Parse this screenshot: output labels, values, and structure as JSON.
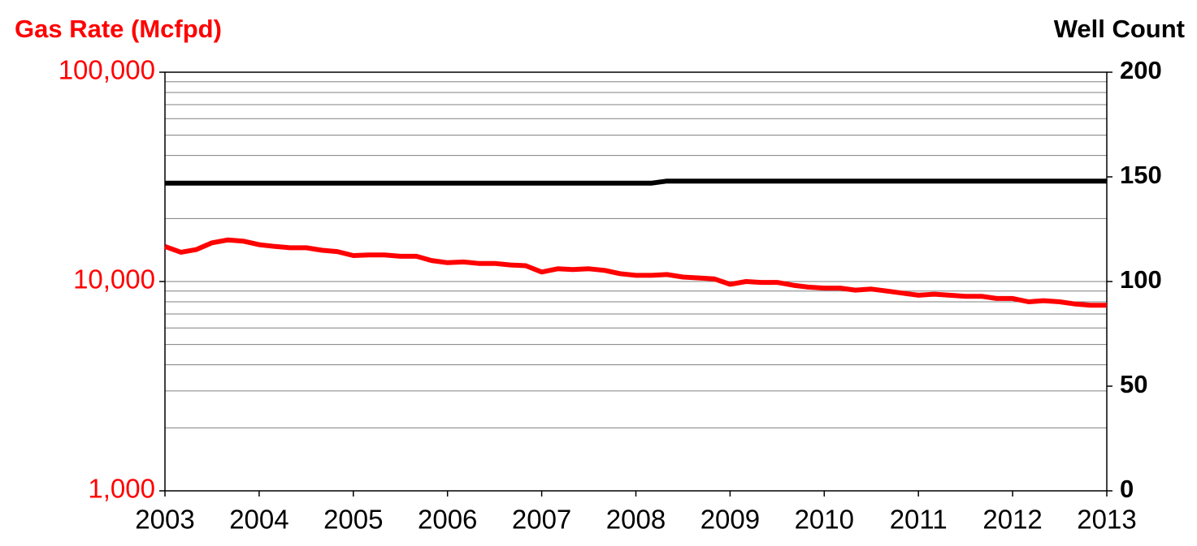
{
  "chart_data": {
    "type": "line",
    "y_title": "Gas Rate (Mcfpd)",
    "y2_title": "Well Count",
    "x": [
      2003.0,
      2003.17,
      2003.33,
      2003.5,
      2003.67,
      2003.83,
      2004.0,
      2004.17,
      2004.33,
      2004.5,
      2004.67,
      2004.83,
      2005.0,
      2005.17,
      2005.33,
      2005.5,
      2005.67,
      2005.83,
      2006.0,
      2006.17,
      2006.33,
      2006.5,
      2006.67,
      2006.83,
      2007.0,
      2007.17,
      2007.33,
      2007.5,
      2007.67,
      2007.83,
      2008.0,
      2008.17,
      2008.33,
      2008.5,
      2008.67,
      2008.83,
      2009.0,
      2009.17,
      2009.33,
      2009.5,
      2009.67,
      2009.83,
      2010.0,
      2010.17,
      2010.33,
      2010.5,
      2010.67,
      2010.83,
      2011.0,
      2011.17,
      2011.33,
      2011.5,
      2011.67,
      2011.83,
      2012.0,
      2012.17,
      2012.33,
      2012.5,
      2012.67,
      2012.83,
      2013.0
    ],
    "series": [
      {
        "name": "Gas Rate",
        "color": "#ff0000",
        "axis": "y",
        "values": [
          14700,
          13800,
          14200,
          15300,
          15800,
          15600,
          15000,
          14700,
          14500,
          14500,
          14100,
          13900,
          13300,
          13400,
          13400,
          13200,
          13200,
          12600,
          12300,
          12400,
          12200,
          12200,
          12000,
          11900,
          11100,
          11500,
          11400,
          11500,
          11300,
          10900,
          10700,
          10700,
          10800,
          10500,
          10400,
          10300,
          9700,
          10000,
          9900,
          9900,
          9600,
          9400,
          9300,
          9300,
          9100,
          9200,
          9000,
          8800,
          8600,
          8700,
          8600,
          8500,
          8500,
          8300,
          8300,
          8000,
          8100,
          8000,
          7800,
          7700,
          7700
        ]
      },
      {
        "name": "Well Count",
        "color": "#000000",
        "axis": "y2",
        "values": [
          147,
          147,
          147,
          147,
          147,
          147,
          147,
          147,
          147,
          147,
          147,
          147,
          147,
          147,
          147,
          147,
          147,
          147,
          147,
          147,
          147,
          147,
          147,
          147,
          147,
          147,
          147,
          147,
          147,
          147,
          147,
          147,
          148,
          148,
          148,
          148,
          148,
          148,
          148,
          148,
          148,
          148,
          148,
          148,
          148,
          148,
          148,
          148,
          148,
          148,
          148,
          148,
          148,
          148,
          148,
          148,
          148,
          148,
          148,
          148,
          148
        ]
      }
    ],
    "xlim": [
      2003,
      2013
    ],
    "xticks": [
      2003,
      2004,
      2005,
      2006,
      2007,
      2008,
      2009,
      2010,
      2011,
      2012,
      2013
    ],
    "ylim": [
      1000,
      100000
    ],
    "y_scale": "log",
    "yticks": [
      {
        "value": 1000,
        "label": "1,000"
      },
      {
        "value": 10000,
        "label": "10,000"
      },
      {
        "value": 100000,
        "label": "100,000"
      }
    ],
    "yminor_ticks": [
      2000,
      3000,
      4000,
      5000,
      6000,
      7000,
      8000,
      9000,
      20000,
      30000,
      40000,
      50000,
      60000,
      70000,
      80000,
      90000
    ],
    "y2lim": [
      0,
      200
    ],
    "y2ticks": [
      0,
      50,
      100,
      150,
      200
    ],
    "grid": true,
    "axis_color": "#ff0000"
  }
}
